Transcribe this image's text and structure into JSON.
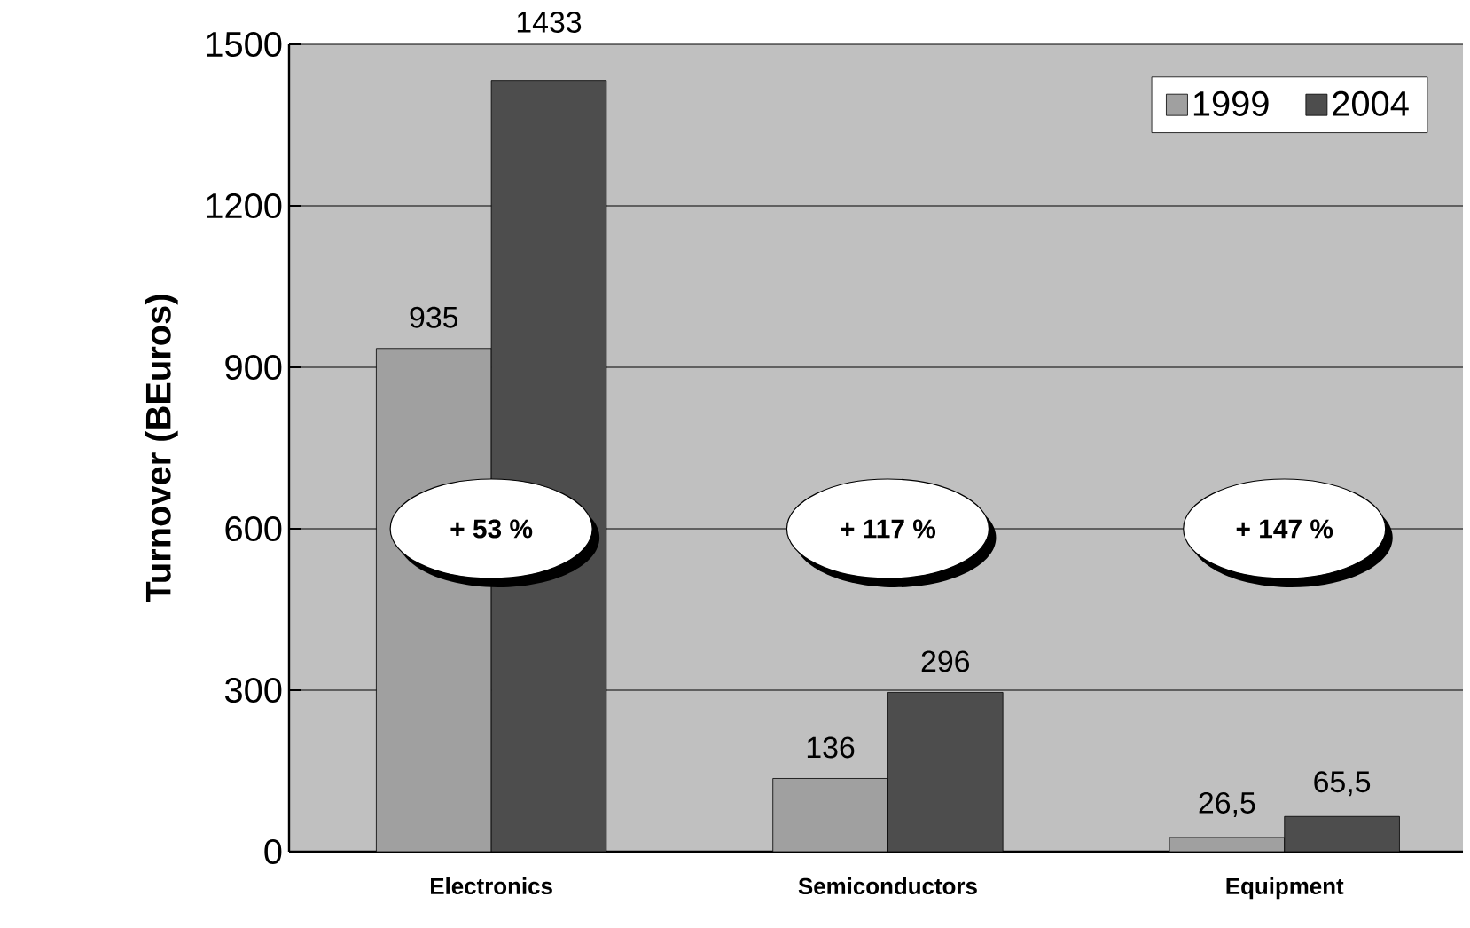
{
  "chart_data": {
    "type": "bar",
    "ylabel": "Turnover (BEuros)",
    "categories": [
      "Electronics",
      "Semiconductors",
      "Equipment"
    ],
    "series": [
      {
        "name": "1999",
        "color": "#a0a0a0",
        "values": [
          935,
          136,
          26.5
        ],
        "value_labels": [
          "935",
          "136",
          "26,5"
        ]
      },
      {
        "name": "2004",
        "color": "#4d4d4d",
        "values": [
          1433,
          296,
          65.5
        ],
        "value_labels": [
          "1433",
          "296",
          "65,5"
        ]
      }
    ],
    "ylim": [
      0,
      1500
    ],
    "yticks": [
      0,
      300,
      600,
      900,
      1200,
      1500
    ],
    "grid": "y",
    "legend": "top right",
    "annotations": [
      "+ 53 %",
      "+ 117 %",
      "+ 147 %"
    ]
  }
}
